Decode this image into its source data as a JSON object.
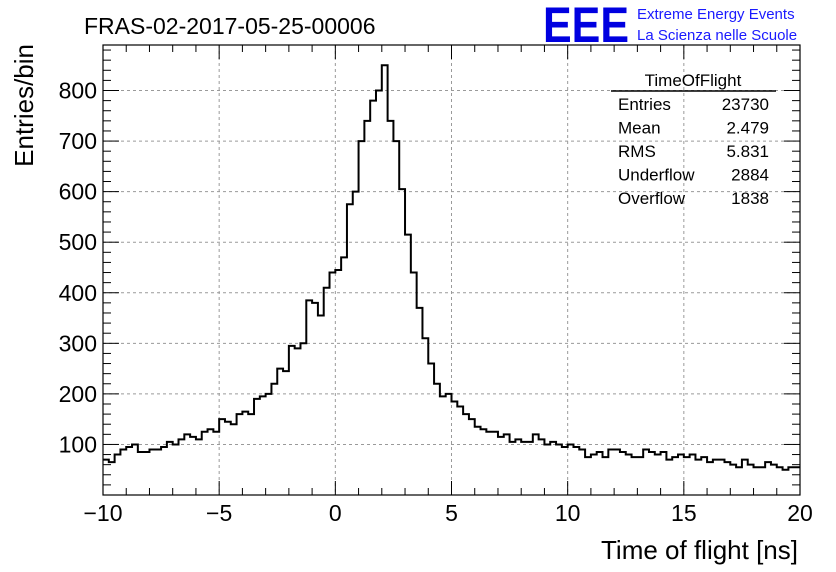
{
  "title": "FRAS-02-2017-05-25-00006",
  "logo": {
    "mark": "EEE",
    "line1": "Extreme Energy Events",
    "line2": "La Scienza nelle Scuole",
    "color": "#0000e0"
  },
  "stats": {
    "name": "TimeOfFlight",
    "rows": [
      {
        "label": "Entries",
        "value": "23730"
      },
      {
        "label": "Mean",
        "value": "2.479"
      },
      {
        "label": "RMS",
        "value": "5.831"
      },
      {
        "label": "Underflow",
        "value": "2884"
      },
      {
        "label": "Overflow",
        "value": "1838"
      }
    ]
  },
  "chart_data": {
    "type": "histogram",
    "xlabel": "Time of flight [ns]",
    "ylabel": "Entries/bin",
    "xlim": [
      -10,
      20
    ],
    "ylim": [
      0,
      890
    ],
    "xticks": [
      -10,
      -5,
      0,
      5,
      10,
      15,
      20
    ],
    "yticks": [
      100,
      200,
      300,
      400,
      500,
      600,
      700,
      800
    ],
    "grid": true,
    "line_color": "#000000",
    "bin_width": 0.25,
    "bin_start": -10,
    "values": [
      70,
      65,
      80,
      90,
      95,
      100,
      85,
      85,
      90,
      90,
      95,
      105,
      100,
      110,
      120,
      115,
      110,
      125,
      130,
      125,
      150,
      145,
      140,
      160,
      165,
      160,
      190,
      195,
      200,
      220,
      250,
      245,
      295,
      290,
      300,
      385,
      380,
      355,
      410,
      440,
      445,
      470,
      575,
      600,
      700,
      740,
      780,
      800,
      850,
      740,
      700,
      605,
      515,
      440,
      370,
      310,
      260,
      220,
      195,
      200,
      185,
      175,
      160,
      150,
      135,
      130,
      125,
      125,
      115,
      120,
      105,
      110,
      105,
      105,
      120,
      110,
      100,
      105,
      100,
      95,
      100,
      95,
      90,
      75,
      80,
      85,
      75,
      90,
      90,
      85,
      80,
      75,
      75,
      90,
      85,
      80,
      85,
      70,
      75,
      80,
      75,
      80,
      70,
      75,
      65,
      70,
      70,
      65,
      60,
      55,
      70,
      60,
      55,
      55,
      65,
      60,
      55,
      50,
      55,
      55
    ]
  }
}
